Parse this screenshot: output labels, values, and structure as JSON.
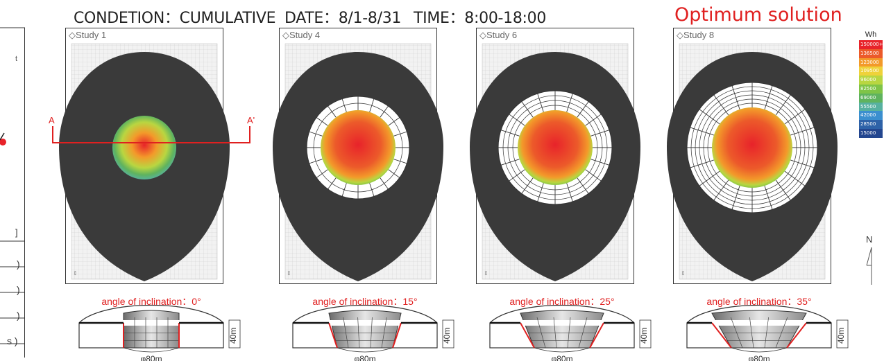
{
  "header": {
    "condition": "CONDETION：CUMULATIVE",
    "date": "DATE：8/1-8/31",
    "time": "TIME：8:00-18:00",
    "optimum": "Optimum solution"
  },
  "studies": [
    {
      "label": "◇Study 1",
      "angle": "angle of inclination：0°",
      "height": "40m",
      "diameter": "φ80m"
    },
    {
      "label": "◇Study 4",
      "angle": "angle of inclination：15°",
      "height": "40m",
      "diameter": "φ80m"
    },
    {
      "label": "◇Study 6",
      "angle": "angle of inclination：25°",
      "height": "40m",
      "diameter": "φ80m"
    },
    {
      "label": "◇Study 8",
      "angle": "angle of inclination：35°",
      "height": "40m",
      "diameter": "φ80m"
    }
  ],
  "section_markers": {
    "a": "A",
    "a_prime": "A'"
  },
  "legend": {
    "unit": "Wh",
    "items": [
      {
        "label": "150000+",
        "color": "#e8232a"
      },
      {
        "label": "136500",
        "color": "#ec5a2a"
      },
      {
        "label": "123000",
        "color": "#f39a2a"
      },
      {
        "label": "109500",
        "color": "#efd23a"
      },
      {
        "label": "96000",
        "color": "#b9d641"
      },
      {
        "label": "82500",
        "color": "#7fc447"
      },
      {
        "label": "69000",
        "color": "#5fb35e"
      },
      {
        "label": "55500",
        "color": "#57b1a0"
      },
      {
        "label": "42000",
        "color": "#3b8fcf"
      },
      {
        "label": "28500",
        "color": "#2e62a8"
      },
      {
        "label": "15000",
        "color": "#23468f"
      }
    ]
  },
  "north": "N",
  "left_fragment": [
    ")",
    ")",
    ")",
    "s )"
  ],
  "colors": {
    "accent": "#e02020",
    "mass": "#3a3a3a"
  }
}
